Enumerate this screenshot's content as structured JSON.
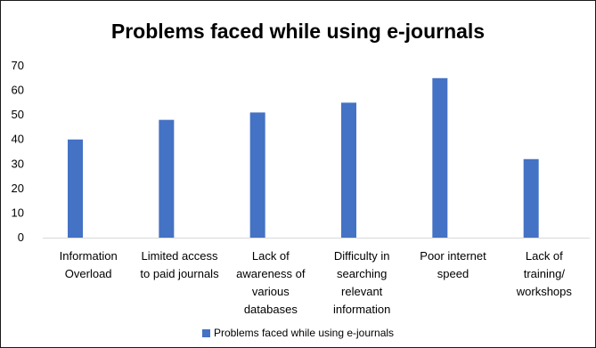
{
  "chart_data": {
    "type": "bar",
    "title": "Problems faced while using e-journals",
    "categories": [
      [
        "Information",
        "Overload"
      ],
      [
        "Limited access",
        "to paid journals"
      ],
      [
        "Lack of",
        "awareness of",
        "various",
        "databases"
      ],
      [
        "Difficulty in",
        "searching",
        "relevant",
        "information"
      ],
      [
        "Poor internet",
        "speed"
      ],
      [
        "Lack of",
        "training/",
        "workshops"
      ]
    ],
    "series": [
      {
        "name": "Problems faced while using e-journals",
        "values": [
          40,
          48,
          51,
          55,
          65,
          32
        ],
        "color": "#4472C4"
      }
    ],
    "ylim": [
      0,
      70
    ],
    "yticks": [
      0,
      10,
      20,
      30,
      40,
      50,
      60,
      70
    ],
    "grid": false,
    "legend": "bottom"
  }
}
